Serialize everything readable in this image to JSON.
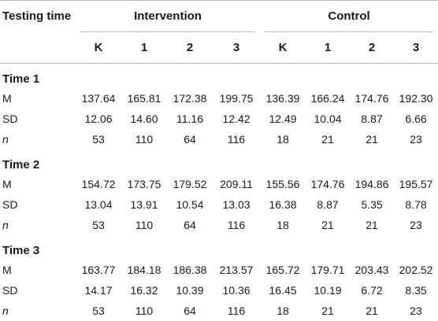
{
  "header": {
    "testing_time": "Testing time",
    "intervention": "Intervention",
    "control": "Control",
    "subcols": [
      "K",
      "1",
      "2",
      "3",
      "K",
      "1",
      "2",
      "3"
    ]
  },
  "sections": [
    {
      "title": "Time 1",
      "rows": [
        {
          "label": "M",
          "italic": false,
          "values": [
            "137.64",
            "165.81",
            "172.38",
            "199.75",
            "136.39",
            "166.24",
            "174.76",
            "192.30"
          ]
        },
        {
          "label": "SD",
          "italic": false,
          "values": [
            "12.06",
            "14.60",
            "11.16",
            "12.42",
            "12.49",
            "10.04",
            "8.87",
            "6.66"
          ]
        },
        {
          "label": "n",
          "italic": true,
          "values": [
            "53",
            "110",
            "64",
            "116",
            "18",
            "21",
            "21",
            "23"
          ]
        }
      ]
    },
    {
      "title": "Time 2",
      "rows": [
        {
          "label": "M",
          "italic": false,
          "values": [
            "154.72",
            "173.75",
            "179.52",
            "209.11",
            "155.56",
            "174.76",
            "194.86",
            "195.57"
          ]
        },
        {
          "label": "SD",
          "italic": false,
          "values": [
            "13.04",
            "13.91",
            "10.54",
            "13.03",
            "16.38",
            "8.87",
            "5.35",
            "8.78"
          ]
        },
        {
          "label": "n",
          "italic": true,
          "values": [
            "53",
            "110",
            "64",
            "116",
            "18",
            "21",
            "21",
            "23"
          ]
        }
      ]
    },
    {
      "title": "Time 3",
      "rows": [
        {
          "label": "M",
          "italic": false,
          "values": [
            "163.77",
            "184.18",
            "186.38",
            "213.57",
            "165.72",
            "179.71",
            "203.43",
            "202.52"
          ]
        },
        {
          "label": "SD",
          "italic": false,
          "values": [
            "14.17",
            "16.32",
            "10.39",
            "10.36",
            "16.45",
            "10.19",
            "6.72",
            "8.35"
          ]
        },
        {
          "label": "n",
          "italic": true,
          "values": [
            "53",
            "110",
            "64",
            "116",
            "18",
            "21",
            "21",
            "23"
          ]
        }
      ]
    }
  ]
}
